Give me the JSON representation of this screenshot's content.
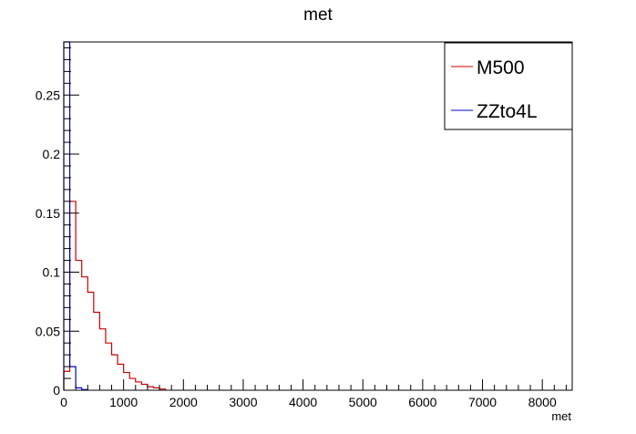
{
  "chart_data": {
    "type": "histogram",
    "title": "met",
    "xlabel": "met",
    "ylabel": "",
    "xlim": [
      0,
      8500
    ],
    "ylim": [
      0,
      0.295
    ],
    "bin_width": 100,
    "grid": false,
    "legend_placement": "top-right",
    "x_ticks": [
      {
        "value": 0,
        "label": "0"
      },
      {
        "value": 1000,
        "label": "1000"
      },
      {
        "value": 2000,
        "label": "2000"
      },
      {
        "value": 3000,
        "label": "3000"
      },
      {
        "value": 4000,
        "label": "4000"
      },
      {
        "value": 5000,
        "label": "5000"
      },
      {
        "value": 6000,
        "label": "6000"
      },
      {
        "value": 7000,
        "label": "7000"
      },
      {
        "value": 8000,
        "label": "8000"
      }
    ],
    "y_ticks": [
      {
        "value": 0,
        "label": "0"
      },
      {
        "value": 0.05,
        "label": "0.05"
      },
      {
        "value": 0.1,
        "label": "0.1"
      },
      {
        "value": 0.15,
        "label": "0.15"
      },
      {
        "value": 0.2,
        "label": "0.2"
      },
      {
        "value": 0.25,
        "label": "0.25"
      }
    ],
    "series": [
      {
        "name": "M500",
        "color": "#cc0000",
        "values": [
          0.016,
          0.16,
          0.11,
          0.096,
          0.083,
          0.066,
          0.052,
          0.04,
          0.03,
          0.022,
          0.015,
          0.01,
          0.007,
          0.005,
          0.003,
          0.002,
          0.001
        ]
      },
      {
        "name": "ZZto4L",
        "color": "#0000cc",
        "values": [
          0.295,
          0.02,
          0.002,
          0.0005
        ]
      }
    ]
  }
}
